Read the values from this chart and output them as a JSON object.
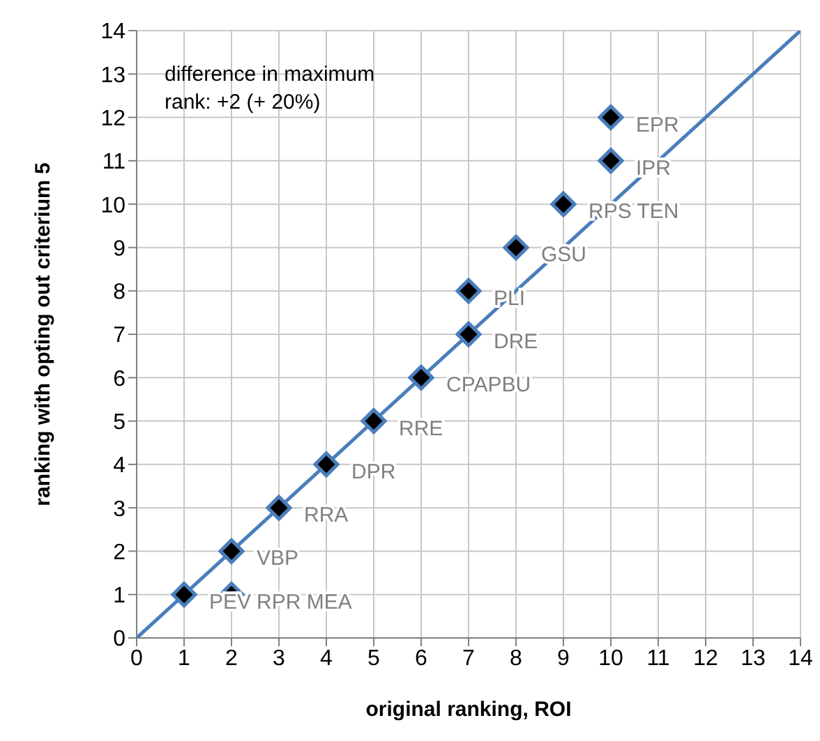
{
  "chart_data": {
    "type": "scatter",
    "xlabel": "original ranking, ROI",
    "ylabel": "ranking with opting out criterium 5",
    "annotations": [
      "difference in maximum rank: +2 (+ 20%)"
    ],
    "xlim": [
      0,
      14
    ],
    "xticks": [
      0,
      1,
      2,
      3,
      4,
      5,
      6,
      7,
      8,
      9,
      10,
      11,
      12,
      13,
      14
    ],
    "ylim": [
      0,
      14
    ],
    "yticks": [
      0,
      1,
      2,
      3,
      4,
      5,
      6,
      7,
      8,
      9,
      10,
      11,
      12,
      13,
      14
    ],
    "grid": true,
    "legend": false,
    "series": [
      {
        "type": "line",
        "color": "#4a7ebb",
        "marker": "none",
        "line_style": "solid",
        "x": [
          0,
          14
        ],
        "values": [
          0,
          14
        ]
      },
      {
        "type": "scatter",
        "color": "#000000",
        "marker": "diamond",
        "x": [
          1,
          2,
          2,
          3,
          4,
          5,
          6,
          7,
          7,
          8,
          9,
          10,
          10
        ],
        "values": [
          1,
          1,
          2,
          3,
          4,
          5,
          6,
          7,
          8,
          9,
          10,
          11,
          12
        ],
        "value_labels": [
          "PEV",
          "RPR MEA",
          "VBP",
          "RRA",
          "DPR",
          "RRE",
          "CPAPBU",
          "DRE",
          "PLI",
          "GSU",
          "RPS TEN",
          "IPR",
          "EPR"
        ]
      }
    ]
  }
}
